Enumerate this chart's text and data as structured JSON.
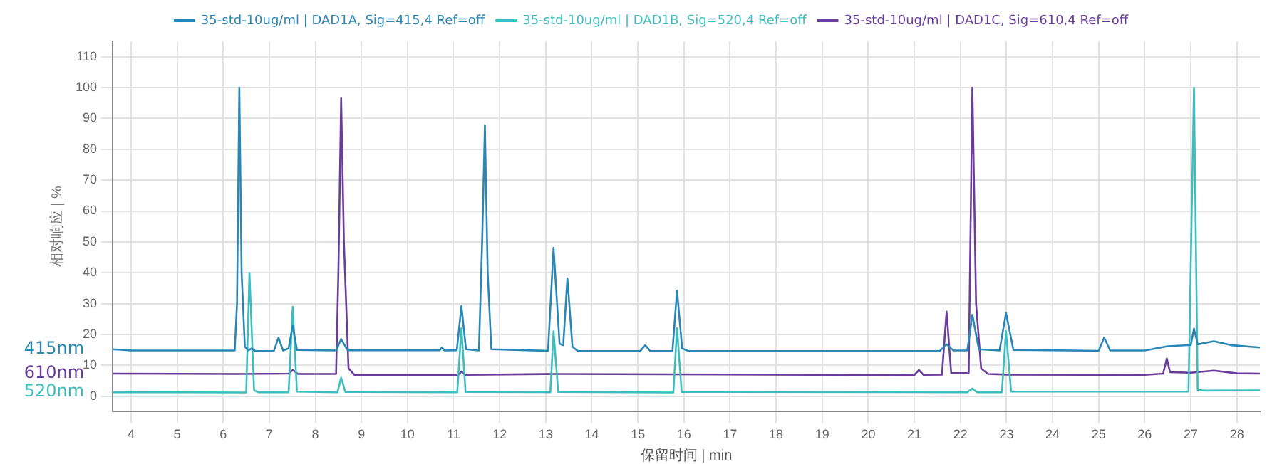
{
  "chart_data": {
    "type": "line",
    "xlabel": "保留时间 | min",
    "ylabel": "相对响应 | %",
    "xlim": [
      3.6,
      28.5
    ],
    "xticks": [
      4,
      5,
      6,
      7,
      8,
      9,
      10,
      11,
      12,
      13,
      14,
      15,
      16,
      17,
      18,
      19,
      20,
      21,
      22,
      23,
      24,
      25,
      26,
      27,
      28
    ],
    "ylim": [
      -5,
      115
    ],
    "yticks": [
      0,
      10,
      20,
      30,
      40,
      50,
      60,
      70,
      80,
      90,
      100,
      110
    ],
    "grid": true,
    "legend": "top",
    "marker": "none",
    "line_style": "solid",
    "annotations": [
      "415nm",
      "610nm",
      "520nm"
    ],
    "series": [
      {
        "name": "35-std-10ug/ml | DAD1A, Sig=415,4 Ref=off",
        "color": "#2a86b5",
        "x": [
          3.6,
          4.0,
          6.25,
          6.3,
          6.35,
          6.4,
          6.47,
          6.55,
          6.62,
          6.7,
          7.1,
          7.2,
          7.3,
          7.42,
          7.51,
          7.6,
          8.45,
          8.56,
          8.7,
          10.7,
          10.75,
          10.8,
          11.07,
          11.17,
          11.27,
          11.55,
          11.62,
          11.68,
          11.74,
          11.82,
          13.05,
          13.17,
          13.3,
          13.38,
          13.47,
          13.58,
          13.7,
          15.05,
          15.16,
          15.27,
          15.75,
          15.85,
          15.96,
          16.1,
          21.55,
          21.7,
          21.85,
          22.15,
          22.26,
          22.4,
          22.85,
          22.99,
          23.15,
          25.0,
          25.12,
          25.25,
          26.0,
          26.5,
          27.0,
          27.07,
          27.15,
          27.5,
          27.9,
          28.5
        ],
        "values": [
          15.2,
          14.8,
          14.8,
          30,
          100,
          40,
          16,
          14.9,
          15.5,
          14.6,
          14.7,
          19,
          14.8,
          15.5,
          23,
          15,
          14.8,
          18.5,
          14.9,
          14.9,
          15.8,
          14.8,
          14.9,
          29.2,
          15.2,
          14.8,
          50,
          87.8,
          40,
          15.2,
          14.7,
          48.1,
          17,
          16.5,
          38.2,
          16,
          14.6,
          14.6,
          16.5,
          14.6,
          14.6,
          34.2,
          15.5,
          14.6,
          14.6,
          16.8,
          14.8,
          14.8,
          26.4,
          15.2,
          14.8,
          27,
          15,
          14.7,
          19,
          14.8,
          14.8,
          16.2,
          16.6,
          21.9,
          16.8,
          17.8,
          16.5,
          15.8
        ]
      },
      {
        "name": "35-std-10ug/ml | DAD1B, Sig=520,4 Ref=off",
        "color": "#3dbdbd",
        "x": [
          3.6,
          6.5,
          6.57,
          6.67,
          6.75,
          7.42,
          7.51,
          7.6,
          8.48,
          8.56,
          8.65,
          11.08,
          11.17,
          11.26,
          13.1,
          13.17,
          13.27,
          15.77,
          15.85,
          15.95,
          22.15,
          22.26,
          22.36,
          22.9,
          22.99,
          23.1,
          26.95,
          27.07,
          27.15,
          27.3,
          28.5
        ],
        "values": [
          1.3,
          1.2,
          40,
          2,
          1.3,
          1.3,
          29,
          1.5,
          1.3,
          6,
          1.4,
          1.3,
          22,
          1.4,
          1.3,
          21,
          1.4,
          1.2,
          22,
          1.4,
          1.3,
          2.5,
          1.3,
          1.3,
          21,
          1.5,
          1.5,
          100,
          2,
          1.8,
          1.9
        ]
      },
      {
        "name": "35-std-10ug/ml | DAD1C, Sig=610,4 Ref=off",
        "color": "#6a3d9c",
        "x": [
          3.6,
          6.3,
          7.42,
          7.51,
          7.62,
          8.45,
          8.5,
          8.56,
          8.62,
          8.72,
          8.85,
          11.1,
          11.17,
          11.25,
          13.2,
          21.0,
          21.1,
          21.2,
          21.6,
          21.7,
          21.8,
          22.18,
          22.26,
          22.34,
          22.45,
          22.6,
          23.0,
          26.0,
          26.4,
          26.48,
          26.55,
          27.0,
          27.5,
          28.0,
          28.5
        ],
        "values": [
          7.3,
          7.2,
          7.3,
          8.5,
          7.2,
          7.2,
          40,
          96.5,
          50,
          9,
          6.9,
          6.9,
          8,
          6.9,
          7.2,
          6.8,
          8.5,
          6.9,
          7,
          27.4,
          7.5,
          7.5,
          100,
          30,
          9,
          7.2,
          7,
          6.9,
          7.3,
          12.2,
          7.8,
          7.6,
          8.3,
          7.4,
          7.3
        ]
      }
    ]
  }
}
